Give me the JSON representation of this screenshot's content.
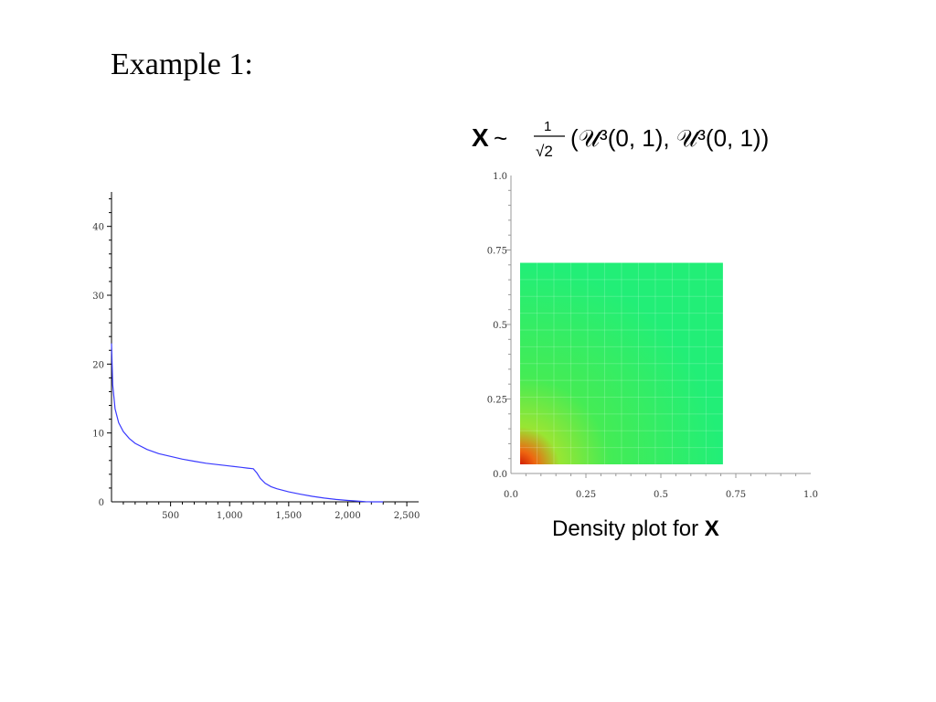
{
  "slide": {
    "title": "Example 1:"
  },
  "chart_data": [
    {
      "type": "line",
      "title": "",
      "xlabel": "",
      "ylabel": "",
      "xlim": [
        0,
        2600
      ],
      "ylim": [
        0,
        45
      ],
      "x_ticks": [
        {
          "value": 500,
          "label": "500"
        },
        {
          "value": 1000,
          "label": "1,000"
        },
        {
          "value": 1500,
          "label": "1,500"
        },
        {
          "value": 2000,
          "label": "2,000"
        },
        {
          "value": 2500,
          "label": "2,500"
        }
      ],
      "y_ticks": [
        {
          "value": 0,
          "label": "0"
        },
        {
          "value": 10,
          "label": "10"
        },
        {
          "value": 20,
          "label": "20"
        },
        {
          "value": 30,
          "label": "30"
        },
        {
          "value": 40,
          "label": "40"
        }
      ],
      "series": [
        {
          "color": "#3a3aff",
          "x": [
            0,
            10,
            30,
            60,
            100,
            150,
            200,
            300,
            400,
            500,
            600,
            700,
            800,
            900,
            1000,
            1100,
            1150,
            1200,
            1230,
            1260,
            1300,
            1350,
            1400,
            1500,
            1600,
            1700,
            1800,
            1900,
            2000,
            2100,
            2150,
            2200,
            2300
          ],
          "y": [
            23,
            17,
            13.5,
            11.5,
            10.2,
            9.2,
            8.5,
            7.6,
            7.0,
            6.6,
            6.2,
            5.9,
            5.6,
            5.4,
            5.2,
            5.0,
            4.9,
            4.8,
            4.2,
            3.4,
            2.7,
            2.2,
            1.9,
            1.45,
            1.1,
            0.8,
            0.55,
            0.35,
            0.2,
            0.08,
            0.03,
            0,
            0
          ]
        }
      ]
    },
    {
      "type": "heatmap",
      "title_parts": {
        "bold": "X",
        "rel": "~",
        "num": "1",
        "den": "√2",
        "body": "(𝒰³(0, 1), 𝒰³(0, 1))"
      },
      "caption_parts": {
        "text": "Density plot for ",
        "bold": "X"
      },
      "xlim": [
        0,
        1
      ],
      "ylim": [
        0,
        1
      ],
      "x_ticks": [
        {
          "value": 0,
          "label": "0.0"
        },
        {
          "value": 0.25,
          "label": "0.25"
        },
        {
          "value": 0.5,
          "label": "0.5"
        },
        {
          "value": 0.75,
          "label": "0.75"
        },
        {
          "value": 1,
          "label": "1.0"
        }
      ],
      "y_ticks": [
        {
          "value": 0,
          "label": "0.0"
        },
        {
          "value": 0.25,
          "label": "0.25"
        },
        {
          "value": 0.5,
          "label": "0.5"
        },
        {
          "value": 0.75,
          "label": "0.75"
        },
        {
          "value": 1,
          "label": "1.0"
        }
      ],
      "support": {
        "x": [
          0.0,
          0.707
        ],
        "y": [
          0.0,
          0.707
        ]
      },
      "colors": {
        "low": "#22ee66",
        "mid": "#99e533",
        "high": "#ee6611",
        "peak": "#cc1100"
      }
    }
  ]
}
